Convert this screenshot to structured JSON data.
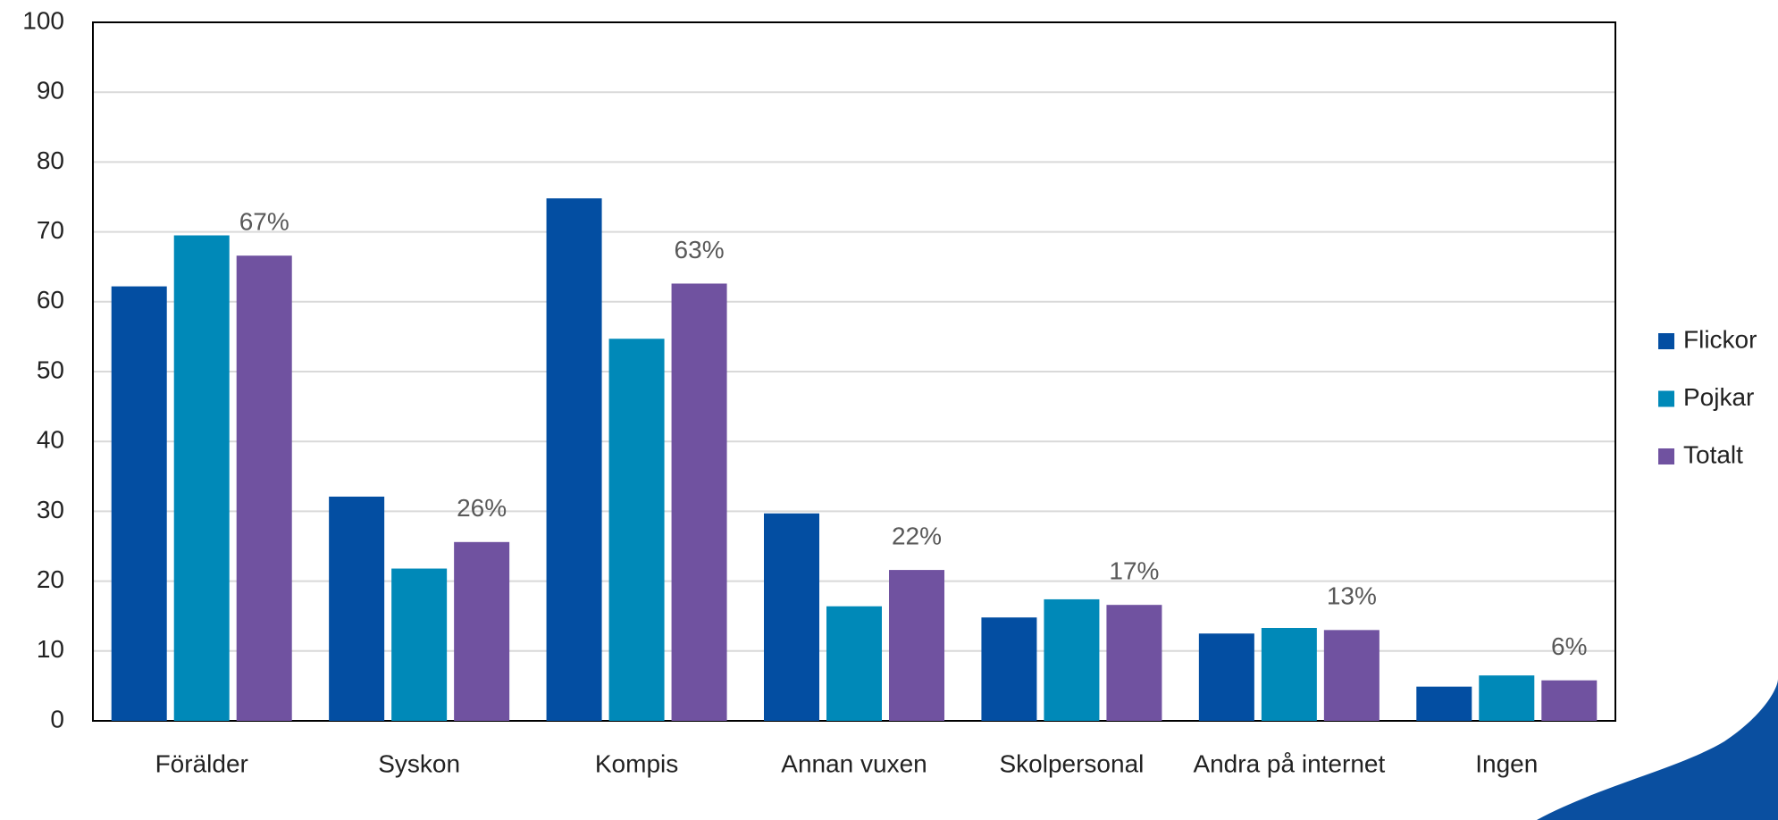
{
  "chart_data": {
    "type": "bar",
    "categories": [
      "Förälder",
      "Syskon",
      "Kompis",
      "Annan vuxen",
      "Skolpersonal",
      "Andra på internet",
      "Ingen"
    ],
    "series": [
      {
        "name": "Flickor",
        "color": "#034ea2",
        "values": [
          62.2,
          32.1,
          74.8,
          29.7,
          14.8,
          12.5,
          4.9
        ]
      },
      {
        "name": "Pojkar",
        "color": "#0089b8",
        "values": [
          69.5,
          21.8,
          54.7,
          16.4,
          17.4,
          13.3,
          6.5
        ]
      },
      {
        "name": "Totalt",
        "color": "#7052a0",
        "values": [
          66.6,
          25.6,
          62.6,
          21.6,
          16.6,
          13.0,
          5.8
        ],
        "value_labels": [
          "67%",
          "26%",
          "63%",
          "22%",
          "17%",
          "13%",
          "6%"
        ]
      }
    ],
    "ylim": [
      0,
      100
    ],
    "yticks": [
      0,
      10,
      20,
      30,
      40,
      50,
      60,
      70,
      80,
      90,
      100
    ],
    "grid": true,
    "legend": "right"
  }
}
